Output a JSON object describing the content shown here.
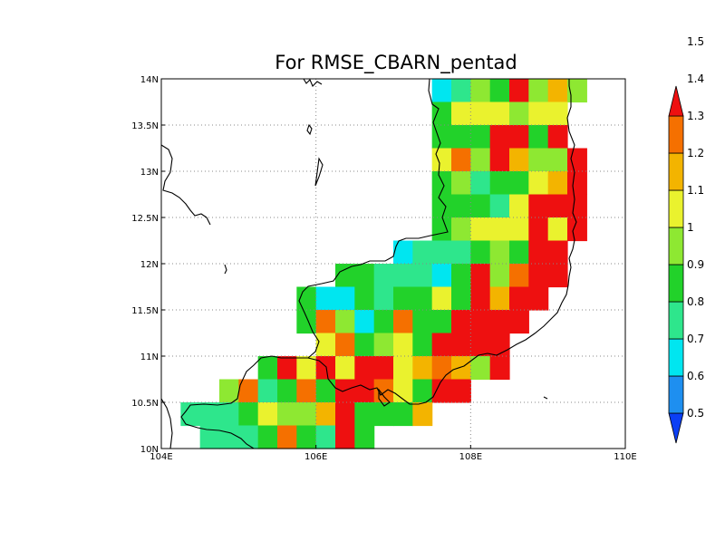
{
  "title": "For RMSE_CBARN_pentad",
  "map": {
    "lon_range": [
      104,
      110
    ],
    "lat_range": [
      10,
      14
    ],
    "grid_step_deg": 0.25,
    "gridlines": "dotted",
    "lon_ticks": [
      {
        "value": 104,
        "label": "104E"
      },
      {
        "value": 106,
        "label": "106E"
      },
      {
        "value": 108,
        "label": "108E"
      },
      {
        "value": 110,
        "label": "110E"
      }
    ],
    "lat_ticks": [
      {
        "value": 10,
        "label": "10N"
      },
      {
        "value": 10.5,
        "label": "10.5N"
      },
      {
        "value": 11,
        "label": "11N"
      },
      {
        "value": 11.5,
        "label": "11.5N"
      },
      {
        "value": 12,
        "label": "12N"
      },
      {
        "value": 12.5,
        "label": "12.5N"
      },
      {
        "value": 13,
        "label": "13N"
      },
      {
        "value": 13.5,
        "label": "13.5N"
      },
      {
        "value": 14,
        "label": "14N"
      }
    ]
  },
  "colorbar": {
    "levels": [
      "0.5",
      "0.6",
      "0.7",
      "0.8",
      "0.9",
      "1",
      "1.1",
      "1.2",
      "1.3",
      "1.4",
      "1.5"
    ],
    "colors": [
      "#0b3ff5",
      "#1e8ff0",
      "#00e6f0",
      "#2ee68c",
      "#22d22a",
      "#8ee832",
      "#eaf22e",
      "#f3b400",
      "#f57000",
      "#ee1010"
    ]
  },
  "cells": [
    {
      "lon": 107.5,
      "lat": 13.75,
      "c": 2
    },
    {
      "lon": 107.75,
      "lat": 13.75,
      "c": 3
    },
    {
      "lon": 108,
      "lat": 13.75,
      "c": 5
    },
    {
      "lon": 108.25,
      "lat": 13.75,
      "c": 4
    },
    {
      "lon": 108.5,
      "lat": 13.75,
      "c": 9
    },
    {
      "lon": 108.75,
      "lat": 13.75,
      "c": 5
    },
    {
      "lon": 109,
      "lat": 13.75,
      "c": 7
    },
    {
      "lon": 109.25,
      "lat": 13.75,
      "c": 5
    },
    {
      "lon": 107.5,
      "lat": 13.5,
      "c": 4
    },
    {
      "lon": 107.75,
      "lat": 13.5,
      "c": 6
    },
    {
      "lon": 108,
      "lat": 13.5,
      "c": 6
    },
    {
      "lon": 108.25,
      "lat": 13.5,
      "c": 6
    },
    {
      "lon": 108.5,
      "lat": 13.5,
      "c": 5
    },
    {
      "lon": 108.75,
      "lat": 13.5,
      "c": 6
    },
    {
      "lon": 109,
      "lat": 13.5,
      "c": 6
    },
    {
      "lon": 107.5,
      "lat": 13.25,
      "c": 4
    },
    {
      "lon": 107.75,
      "lat": 13.25,
      "c": 4
    },
    {
      "lon": 108,
      "lat": 13.25,
      "c": 4
    },
    {
      "lon": 108.25,
      "lat": 13.25,
      "c": 9
    },
    {
      "lon": 108.5,
      "lat": 13.25,
      "c": 9
    },
    {
      "lon": 108.75,
      "lat": 13.25,
      "c": 4
    },
    {
      "lon": 109,
      "lat": 13.25,
      "c": 9
    },
    {
      "lon": 107.5,
      "lat": 13,
      "c": 6
    },
    {
      "lon": 107.75,
      "lat": 13,
      "c": 8
    },
    {
      "lon": 108,
      "lat": 13,
      "c": 5
    },
    {
      "lon": 108.25,
      "lat": 13,
      "c": 9
    },
    {
      "lon": 108.5,
      "lat": 13,
      "c": 7
    },
    {
      "lon": 108.75,
      "lat": 13,
      "c": 5
    },
    {
      "lon": 109,
      "lat": 13,
      "c": 5
    },
    {
      "lon": 109.25,
      "lat": 13,
      "c": 9
    },
    {
      "lon": 107.5,
      "lat": 12.75,
      "c": 4
    },
    {
      "lon": 107.75,
      "lat": 12.75,
      "c": 5
    },
    {
      "lon": 108,
      "lat": 12.75,
      "c": 3
    },
    {
      "lon": 108.25,
      "lat": 12.75,
      "c": 4
    },
    {
      "lon": 108.5,
      "lat": 12.75,
      "c": 4
    },
    {
      "lon": 108.75,
      "lat": 12.75,
      "c": 6
    },
    {
      "lon": 109,
      "lat": 12.75,
      "c": 7
    },
    {
      "lon": 109.25,
      "lat": 12.75,
      "c": 9
    },
    {
      "lon": 107.5,
      "lat": 12.5,
      "c": 4
    },
    {
      "lon": 107.75,
      "lat": 12.5,
      "c": 4
    },
    {
      "lon": 108,
      "lat": 12.5,
      "c": 4
    },
    {
      "lon": 108.25,
      "lat": 12.5,
      "c": 3
    },
    {
      "lon": 108.5,
      "lat": 12.5,
      "c": 6
    },
    {
      "lon": 108.75,
      "lat": 12.5,
      "c": 9
    },
    {
      "lon": 109,
      "lat": 12.5,
      "c": 9
    },
    {
      "lon": 109.25,
      "lat": 12.5,
      "c": 9
    },
    {
      "lon": 107.5,
      "lat": 12.25,
      "c": 4
    },
    {
      "lon": 107.75,
      "lat": 12.25,
      "c": 5
    },
    {
      "lon": 108,
      "lat": 12.25,
      "c": 6
    },
    {
      "lon": 108.25,
      "lat": 12.25,
      "c": 6
    },
    {
      "lon": 108.5,
      "lat": 12.25,
      "c": 6
    },
    {
      "lon": 108.75,
      "lat": 12.25,
      "c": 9
    },
    {
      "lon": 109,
      "lat": 12.25,
      "c": 6
    },
    {
      "lon": 109.25,
      "lat": 12.25,
      "c": 9
    },
    {
      "lon": 107,
      "lat": 12,
      "c": 2
    },
    {
      "lon": 107.25,
      "lat": 12,
      "c": 3
    },
    {
      "lon": 107.5,
      "lat": 12,
      "c": 3
    },
    {
      "lon": 107.75,
      "lat": 12,
      "c": 3
    },
    {
      "lon": 108,
      "lat": 12,
      "c": 4
    },
    {
      "lon": 108.25,
      "lat": 12,
      "c": 5
    },
    {
      "lon": 108.5,
      "lat": 12,
      "c": 4
    },
    {
      "lon": 108.75,
      "lat": 12,
      "c": 9
    },
    {
      "lon": 109,
      "lat": 12,
      "c": 9
    },
    {
      "lon": 106.25,
      "lat": 11.75,
      "c": 4
    },
    {
      "lon": 106.5,
      "lat": 11.75,
      "c": 4
    },
    {
      "lon": 106.75,
      "lat": 11.75,
      "c": 3
    },
    {
      "lon": 107,
      "lat": 11.75,
      "c": 3
    },
    {
      "lon": 107.25,
      "lat": 11.75,
      "c": 3
    },
    {
      "lon": 107.5,
      "lat": 11.75,
      "c": 2
    },
    {
      "lon": 107.75,
      "lat": 11.75,
      "c": 4
    },
    {
      "lon": 108,
      "lat": 11.75,
      "c": 9
    },
    {
      "lon": 108.25,
      "lat": 11.75,
      "c": 5
    },
    {
      "lon": 108.5,
      "lat": 11.75,
      "c": 8
    },
    {
      "lon": 108.75,
      "lat": 11.75,
      "c": 9
    },
    {
      "lon": 109,
      "lat": 11.75,
      "c": 9
    },
    {
      "lon": 105.75,
      "lat": 11.5,
      "c": 4
    },
    {
      "lon": 106,
      "lat": 11.5,
      "c": 2
    },
    {
      "lon": 106.25,
      "lat": 11.5,
      "c": 2
    },
    {
      "lon": 106.5,
      "lat": 11.5,
      "c": 4
    },
    {
      "lon": 106.75,
      "lat": 11.5,
      "c": 3
    },
    {
      "lon": 107,
      "lat": 11.5,
      "c": 4
    },
    {
      "lon": 107.25,
      "lat": 11.5,
      "c": 4
    },
    {
      "lon": 107.5,
      "lat": 11.5,
      "c": 6
    },
    {
      "lon": 107.75,
      "lat": 11.5,
      "c": 4
    },
    {
      "lon": 108,
      "lat": 11.5,
      "c": 9
    },
    {
      "lon": 108.25,
      "lat": 11.5,
      "c": 7
    },
    {
      "lon": 108.5,
      "lat": 11.5,
      "c": 9
    },
    {
      "lon": 108.75,
      "lat": 11.5,
      "c": 9
    },
    {
      "lon": 105.75,
      "lat": 11.25,
      "c": 4
    },
    {
      "lon": 106,
      "lat": 11.25,
      "c": 8
    },
    {
      "lon": 106.25,
      "lat": 11.25,
      "c": 5
    },
    {
      "lon": 106.5,
      "lat": 11.25,
      "c": 2
    },
    {
      "lon": 106.75,
      "lat": 11.25,
      "c": 4
    },
    {
      "lon": 107,
      "lat": 11.25,
      "c": 8
    },
    {
      "lon": 107.25,
      "lat": 11.25,
      "c": 4
    },
    {
      "lon": 107.5,
      "lat": 11.25,
      "c": 4
    },
    {
      "lon": 107.75,
      "lat": 11.25,
      "c": 9
    },
    {
      "lon": 108,
      "lat": 11.25,
      "c": 9
    },
    {
      "lon": 108.25,
      "lat": 11.25,
      "c": 9
    },
    {
      "lon": 108.5,
      "lat": 11.25,
      "c": 9
    },
    {
      "lon": 106,
      "lat": 11,
      "c": 6
    },
    {
      "lon": 106.25,
      "lat": 11,
      "c": 8
    },
    {
      "lon": 106.5,
      "lat": 11,
      "c": 4
    },
    {
      "lon": 106.75,
      "lat": 11,
      "c": 5
    },
    {
      "lon": 107,
      "lat": 11,
      "c": 6
    },
    {
      "lon": 107.25,
      "lat": 11,
      "c": 4
    },
    {
      "lon": 107.5,
      "lat": 11,
      "c": 9
    },
    {
      "lon": 107.75,
      "lat": 11,
      "c": 9
    },
    {
      "lon": 108,
      "lat": 11,
      "c": 9
    },
    {
      "lon": 108.25,
      "lat": 11,
      "c": 9
    },
    {
      "lon": 105.25,
      "lat": 10.75,
      "c": 4
    },
    {
      "lon": 105.5,
      "lat": 10.75,
      "c": 9
    },
    {
      "lon": 105.75,
      "lat": 10.75,
      "c": 6
    },
    {
      "lon": 106,
      "lat": 10.75,
      "c": 9
    },
    {
      "lon": 106.25,
      "lat": 10.75,
      "c": 6
    },
    {
      "lon": 106.5,
      "lat": 10.75,
      "c": 9
    },
    {
      "lon": 106.75,
      "lat": 10.75,
      "c": 9
    },
    {
      "lon": 107,
      "lat": 10.75,
      "c": 6
    },
    {
      "lon": 107.25,
      "lat": 10.75,
      "c": 7
    },
    {
      "lon": 107.5,
      "lat": 10.75,
      "c": 8
    },
    {
      "lon": 107.75,
      "lat": 10.75,
      "c": 7
    },
    {
      "lon": 108,
      "lat": 10.75,
      "c": 5
    },
    {
      "lon": 108.25,
      "lat": 10.75,
      "c": 9
    },
    {
      "lon": 104.75,
      "lat": 10.5,
      "c": 5
    },
    {
      "lon": 105,
      "lat": 10.5,
      "c": 8
    },
    {
      "lon": 105.25,
      "lat": 10.5,
      "c": 3
    },
    {
      "lon": 105.5,
      "lat": 10.5,
      "c": 4
    },
    {
      "lon": 105.75,
      "lat": 10.5,
      "c": 8
    },
    {
      "lon": 106,
      "lat": 10.5,
      "c": 4
    },
    {
      "lon": 106.25,
      "lat": 10.5,
      "c": 9
    },
    {
      "lon": 106.5,
      "lat": 10.5,
      "c": 9
    },
    {
      "lon": 106.75,
      "lat": 10.5,
      "c": 8
    },
    {
      "lon": 107,
      "lat": 10.5,
      "c": 6
    },
    {
      "lon": 107.25,
      "lat": 10.5,
      "c": 4
    },
    {
      "lon": 107.5,
      "lat": 10.5,
      "c": 9
    },
    {
      "lon": 107.75,
      "lat": 10.5,
      "c": 9
    },
    {
      "lon": 104.25,
      "lat": 10.25,
      "c": 3
    },
    {
      "lon": 104.5,
      "lat": 10.25,
      "c": 3
    },
    {
      "lon": 104.75,
      "lat": 10.25,
      "c": 3
    },
    {
      "lon": 105,
      "lat": 10.25,
      "c": 4
    },
    {
      "lon": 105.25,
      "lat": 10.25,
      "c": 6
    },
    {
      "lon": 105.5,
      "lat": 10.25,
      "c": 5
    },
    {
      "lon": 105.75,
      "lat": 10.25,
      "c": 5
    },
    {
      "lon": 106,
      "lat": 10.25,
      "c": 7
    },
    {
      "lon": 106.25,
      "lat": 10.25,
      "c": 9
    },
    {
      "lon": 106.5,
      "lat": 10.25,
      "c": 4
    },
    {
      "lon": 106.75,
      "lat": 10.25,
      "c": 4
    },
    {
      "lon": 107,
      "lat": 10.25,
      "c": 4
    },
    {
      "lon": 107.25,
      "lat": 10.25,
      "c": 7
    },
    {
      "lon": 104.5,
      "lat": 10,
      "c": 3
    },
    {
      "lon": 104.75,
      "lat": 10,
      "c": 3
    },
    {
      "lon": 105,
      "lat": 10,
      "c": 3
    },
    {
      "lon": 105.25,
      "lat": 10,
      "c": 4
    },
    {
      "lon": 105.5,
      "lat": 10,
      "c": 8
    },
    {
      "lon": 105.75,
      "lat": 10,
      "c": 4
    },
    {
      "lon": 106,
      "lat": 10,
      "c": 3
    },
    {
      "lon": 106.25,
      "lat": 10,
      "c": 9
    },
    {
      "lon": 106.5,
      "lat": 10,
      "c": 4
    }
  ]
}
